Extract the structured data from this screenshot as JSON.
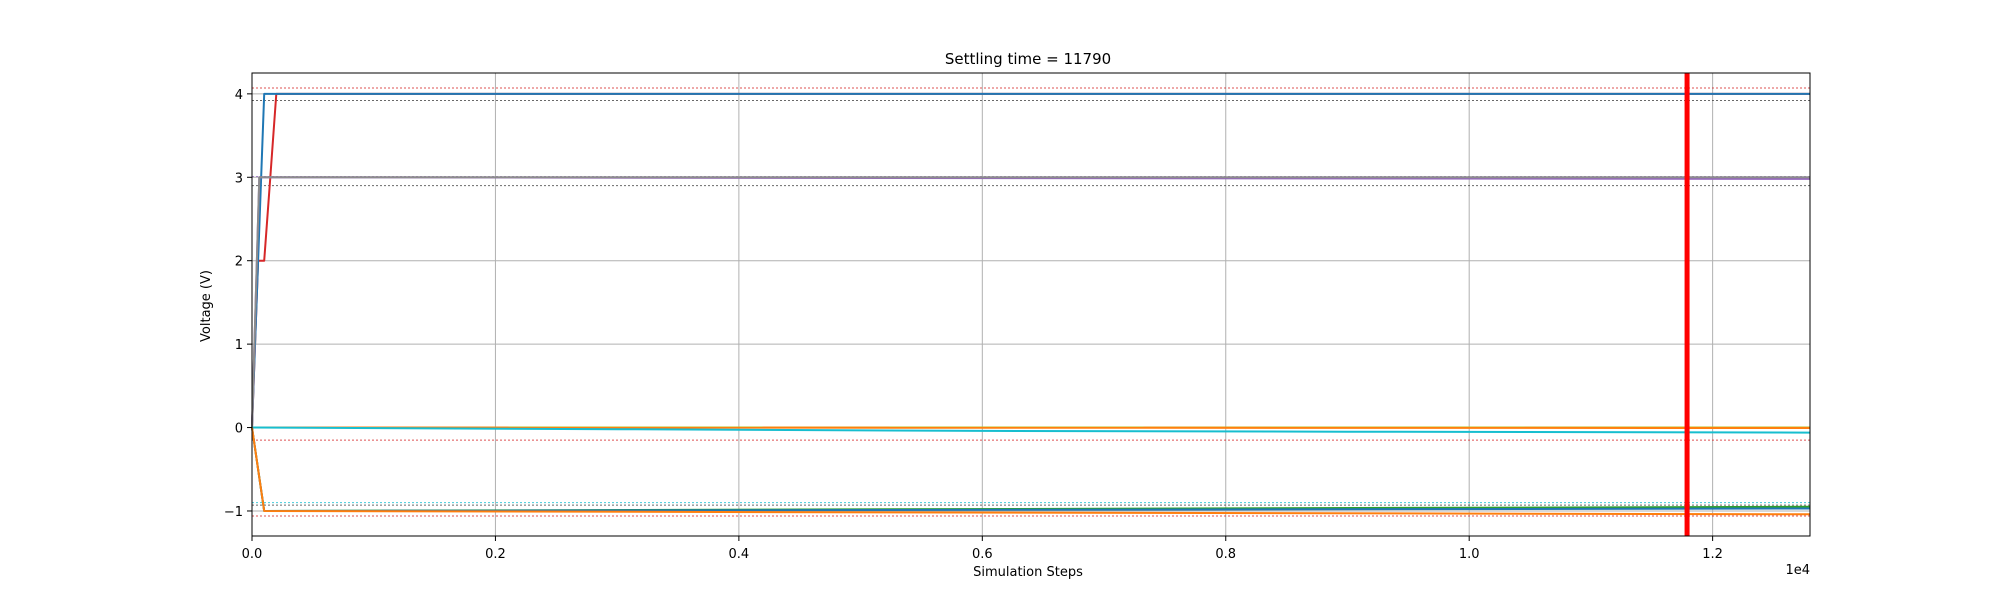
{
  "chart_data": {
    "type": "line",
    "title": "Settling time = 11790",
    "xlabel": "Simulation Steps",
    "ylabel": "Voltage (V)",
    "x_multiplier_label": "1e4",
    "xlim": [
      0,
      12800
    ],
    "ylim": [
      -1.3,
      4.25
    ],
    "x_ticks": [
      0,
      2000,
      4000,
      6000,
      8000,
      10000,
      12000
    ],
    "x_tick_labels": [
      "0.0",
      "0.2",
      "0.4",
      "0.6",
      "0.8",
      "1.0",
      "1.2"
    ],
    "y_ticks": [
      -1,
      0,
      1,
      2,
      3,
      4
    ],
    "y_tick_labels": [
      "−1",
      "0",
      "1",
      "2",
      "3",
      "4"
    ],
    "grid": true,
    "legend": "none",
    "settling_time": 11790,
    "settling_marker_color": "#ff0000",
    "series": [
      {
        "color": "#d62728",
        "x": [
          0,
          50,
          100,
          150,
          200,
          12800
        ],
        "y": [
          0,
          2,
          2,
          3,
          4,
          4
        ]
      },
      {
        "color": "#1f77b4",
        "x": [
          0,
          50,
          100,
          150,
          12800
        ],
        "y": [
          0,
          2,
          4,
          4,
          4
        ]
      },
      {
        "color": "#9467bd",
        "x": [
          0,
          60,
          12800
        ],
        "y": [
          0,
          3,
          2.98
        ]
      },
      {
        "color": "#8c8c8c",
        "x": [
          0,
          60,
          12800
        ],
        "y": [
          0,
          3,
          3.0
        ]
      },
      {
        "color": "#bcbd22",
        "x": [
          0,
          12800
        ],
        "y": [
          0,
          0
        ]
      },
      {
        "color": "#ff7f0e",
        "x": [
          0,
          12800
        ],
        "y": [
          0,
          -0.005
        ]
      },
      {
        "color": "#17becf",
        "x": [
          0,
          3000,
          6000,
          9000,
          12800
        ],
        "y": [
          0,
          -0.02,
          -0.04,
          -0.05,
          -0.06
        ]
      },
      {
        "color": "#2ca02c",
        "x": [
          0,
          100,
          12800
        ],
        "y": [
          0,
          -1,
          -0.95
        ]
      },
      {
        "color": "#1f77b4",
        "x": [
          0,
          100,
          12800
        ],
        "y": [
          0,
          -1,
          -0.97
        ]
      },
      {
        "color": "#ff7f0e",
        "x": [
          0,
          100,
          12800
        ],
        "y": [
          0,
          -1,
          -1.04
        ]
      }
    ],
    "tolerance_bands": [
      {
        "color": "#d62728",
        "y": 4.07
      },
      {
        "color": "#444444",
        "y": 3.92
      },
      {
        "color": "#9467bd",
        "y": 3.01
      },
      {
        "color": "#444444",
        "y": 2.9
      },
      {
        "color": "#d62728",
        "y": -0.15
      },
      {
        "color": "#17becf",
        "y": -0.9
      },
      {
        "color": "#444444",
        "y": -0.93
      },
      {
        "color": "#d62728",
        "y": -1.06
      }
    ]
  }
}
